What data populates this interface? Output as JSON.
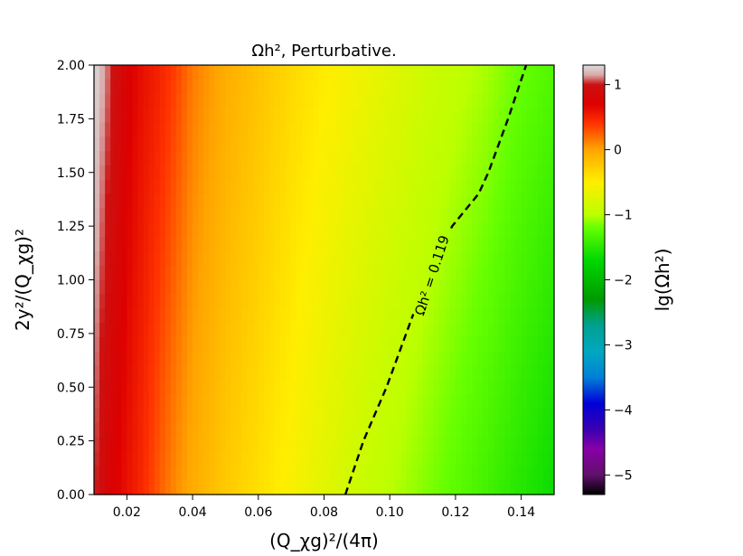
{
  "chart_data": {
    "type": "heatmap",
    "title": "Ωh², Perturbative.",
    "xlabel": "(Q_χg)²/(4π)",
    "ylabel": "2y²/(Q_χg)²",
    "xlim": [
      0.01,
      0.15
    ],
    "ylim": [
      0.0,
      2.0
    ],
    "x_ticks": [
      {
        "value": 0.02,
        "label": "0.02"
      },
      {
        "value": 0.04,
        "label": "0.04"
      },
      {
        "value": 0.06,
        "label": "0.06"
      },
      {
        "value": 0.08,
        "label": "0.08"
      },
      {
        "value": 0.1,
        "label": "0.10"
      },
      {
        "value": 0.12,
        "label": "0.12"
      },
      {
        "value": 0.14,
        "label": "0.14"
      }
    ],
    "y_ticks": [
      {
        "value": 0.0,
        "label": "0.00"
      },
      {
        "value": 0.25,
        "label": "0.25"
      },
      {
        "value": 0.5,
        "label": "0.50"
      },
      {
        "value": 0.75,
        "label": "0.75"
      },
      {
        "value": 1.0,
        "label": "1.00"
      },
      {
        "value": 1.25,
        "label": "1.25"
      },
      {
        "value": 1.5,
        "label": "1.50"
      },
      {
        "value": 1.75,
        "label": "1.75"
      },
      {
        "value": 2.0,
        "label": "2.00"
      }
    ],
    "colorbar": {
      "label": "lg(Ωh²)",
      "range": [
        -5.3,
        1.3
      ],
      "ticks": [
        {
          "value": 1,
          "label": "1"
        },
        {
          "value": 0,
          "label": "0"
        },
        {
          "value": -1,
          "label": "−1"
        },
        {
          "value": -2,
          "label": "−2"
        },
        {
          "value": -3,
          "label": "−3"
        },
        {
          "value": -4,
          "label": "−4"
        },
        {
          "value": -5,
          "label": "−5"
        }
      ],
      "colormap": [
        {
          "v": -5.3,
          "color": "#000000"
        },
        {
          "v": -5.0,
          "color": "#60106b"
        },
        {
          "v": -4.6,
          "color": "#8800a8"
        },
        {
          "v": -4.3,
          "color": "#3a00b0"
        },
        {
          "v": -3.9,
          "color": "#0000d8"
        },
        {
          "v": -3.5,
          "color": "#0080d8"
        },
        {
          "v": -3.1,
          "color": "#00a8c0"
        },
        {
          "v": -2.7,
          "color": "#00a090"
        },
        {
          "v": -2.3,
          "color": "#009a00"
        },
        {
          "v": -1.7,
          "color": "#00d800"
        },
        {
          "v": -1.2,
          "color": "#66ff00"
        },
        {
          "v": -1.0,
          "color": "#bbff00"
        },
        {
          "v": -0.5,
          "color": "#ffee00"
        },
        {
          "v": 0.0,
          "color": "#ffa500"
        },
        {
          "v": 0.4,
          "color": "#ff3300"
        },
        {
          "v": 0.7,
          "color": "#dd0000"
        },
        {
          "v": 1.0,
          "color": "#cc1111"
        },
        {
          "v": 1.15,
          "color": "#d9aaaa"
        },
        {
          "v": 1.3,
          "color": "#dddddd"
        }
      ]
    },
    "color_field": {
      "description_values": "lg(Ωh²) along x at y=0 and y=2",
      "x": [
        0.01,
        0.015,
        0.02,
        0.025,
        0.03,
        0.035,
        0.04,
        0.05,
        0.06,
        0.07,
        0.08,
        0.09,
        0.1,
        0.11,
        0.12,
        0.13,
        0.14,
        0.15
      ],
      "at_y0": [
        1.05,
        0.75,
        0.6,
        0.45,
        0.25,
        0.08,
        -0.05,
        -0.25,
        -0.4,
        -0.55,
        -0.72,
        -0.88,
        -1.0,
        -1.12,
        -1.25,
        -1.38,
        -1.52,
        -1.65
      ],
      "at_y2": [
        1.3,
        1.05,
        0.75,
        0.6,
        0.5,
        0.35,
        0.15,
        -0.05,
        -0.2,
        -0.35,
        -0.48,
        -0.6,
        -0.72,
        -0.85,
        -0.95,
        -1.05,
        -1.2,
        -1.3
      ]
    },
    "contour": {
      "label": "Ωh² = 0.119",
      "style": "dashed",
      "color": "#000000",
      "points": [
        {
          "x": 0.0865,
          "y": 0.0
        },
        {
          "x": 0.092,
          "y": 0.25
        },
        {
          "x": 0.099,
          "y": 0.5
        },
        {
          "x": 0.105,
          "y": 0.75
        },
        {
          "x": 0.111,
          "y": 1.0
        },
        {
          "x": 0.119,
          "y": 1.25
        },
        {
          "x": 0.127,
          "y": 1.4
        },
        {
          "x": 0.13,
          "y": 1.5
        },
        {
          "x": 0.136,
          "y": 1.75
        },
        {
          "x": 0.1415,
          "y": 2.0
        }
      ],
      "label_position": {
        "x": 0.113,
        "y": 1.02
      }
    }
  }
}
